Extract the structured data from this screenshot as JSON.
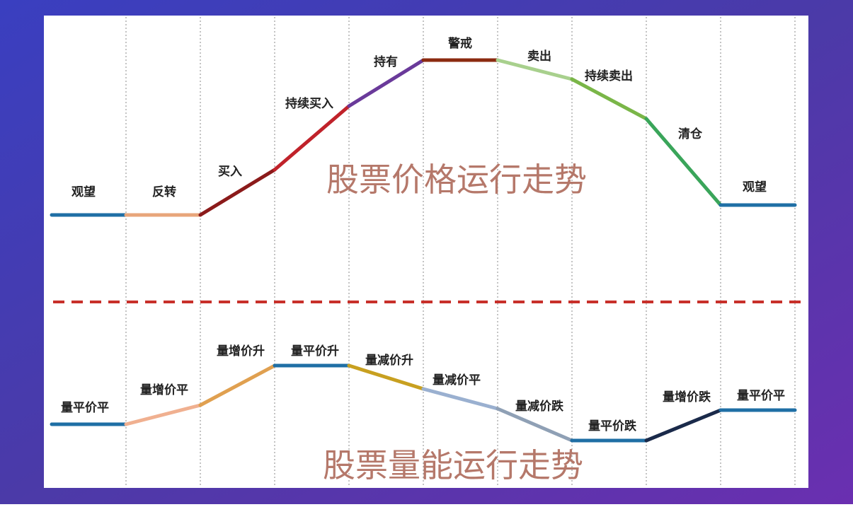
{
  "price_trend": {
    "title": "股票价格运行走势",
    "stages": [
      "观望",
      "反转",
      "买入",
      "持续买入",
      "持有",
      "警戒",
      "卖出",
      "持续卖出",
      "清仓",
      "观望"
    ]
  },
  "volume_trend": {
    "title": "股票量能运行走势",
    "stages": [
      "量平价平",
      "量增价平",
      "量增价升",
      "量平价升",
      "量减价升",
      "量减价平",
      "量减价跌",
      "量平价跌",
      "量增价跌",
      "量平价平"
    ]
  }
}
